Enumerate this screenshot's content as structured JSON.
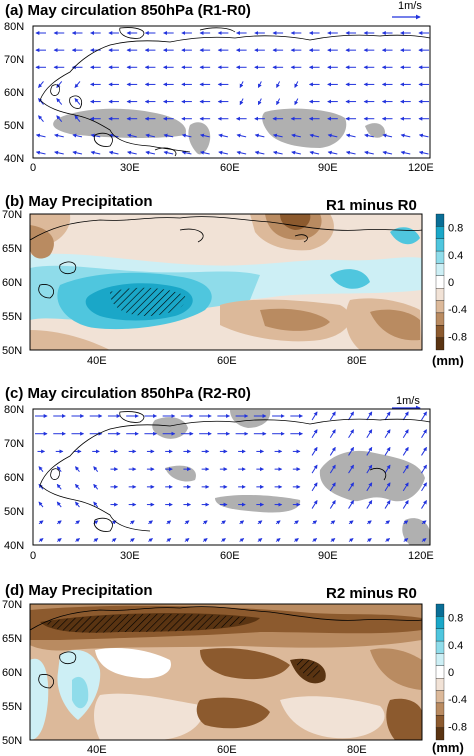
{
  "chart_data": [
    {
      "type": "vector-field",
      "title": "(a) May circulation 850hPa (R1-R0)",
      "reference_vector": "1m/s",
      "x_ticks": [
        "0",
        "30E",
        "60E",
        "90E",
        "120E"
      ],
      "y_ticks": [
        "80N",
        "70N",
        "60N",
        "50N",
        "40N"
      ],
      "xlim": [
        0,
        120
      ],
      "ylim": [
        40,
        80
      ],
      "wind_pattern": "mostly westerly/easterly arrows with cyclonic curl near 0-10E 55-60N",
      "shaded_regions_desc": "grey shading at ~45-50N over 10-50E and 85-105E"
    },
    {
      "type": "heatmap",
      "title": "(b) May Precipitation",
      "label": "R1 minus R0",
      "x_ticks": [
        "40E",
        "60E",
        "80E"
      ],
      "y_ticks": [
        "70N",
        "65N",
        "60N",
        "55N",
        "50N"
      ],
      "xlim": [
        30,
        90
      ],
      "ylim": [
        50,
        70
      ],
      "colorbar_ticks": [
        "0.8",
        "0.4",
        "0",
        "-0.4",
        "-0.8"
      ],
      "colorbar_unit": "(mm)",
      "colorbar_range": [
        -1.0,
        1.0
      ],
      "palette": [
        "#5a3412",
        "#8c5a2e",
        "#b98b61",
        "#dcb99a",
        "#f1e2d6",
        "#ffffff",
        "#cdeff5",
        "#8fdcea",
        "#4fc6de",
        "#1aa7c8",
        "#0a6e96"
      ],
      "hatched_region": "~45-55E, 55-58N"
    },
    {
      "type": "vector-field",
      "title": "(c) May circulation 850hPa (R2-R0)",
      "reference_vector": "1m/s",
      "x_ticks": [
        "0",
        "30E",
        "60E",
        "90E",
        "120E"
      ],
      "y_ticks": [
        "80N",
        "70N",
        "60N",
        "50N",
        "40N"
      ],
      "xlim": [
        0,
        120
      ],
      "ylim": [
        40,
        80
      ],
      "wind_pattern": "strong westerlies in north, southerly flow east of 90E",
      "shaded_regions_desc": "grey shading near 60E 75N, 70-90E 48-52N and 90-115E 55-65N"
    },
    {
      "type": "heatmap",
      "title": "(d) May Precipitation",
      "label": "R2 minus R0",
      "x_ticks": [
        "40E",
        "60E",
        "80E"
      ],
      "y_ticks": [
        "70N",
        "65N",
        "60N",
        "55N",
        "50N"
      ],
      "xlim": [
        30,
        90
      ],
      "ylim": [
        50,
        70
      ],
      "colorbar_ticks": [
        "0.8",
        "0.4",
        "0",
        "-0.4",
        "-0.8"
      ],
      "colorbar_unit": "(mm)",
      "colorbar_range": [
        -1.0,
        1.0
      ],
      "palette": [
        "#5a3412",
        "#8c5a2e",
        "#b98b61",
        "#dcb99a",
        "#f1e2d6",
        "#ffffff",
        "#cdeff5",
        "#8fdcea",
        "#4fc6de",
        "#1aa7c8",
        "#0a6e96"
      ],
      "hatched_region": "~35-65E, 65-68N"
    }
  ]
}
